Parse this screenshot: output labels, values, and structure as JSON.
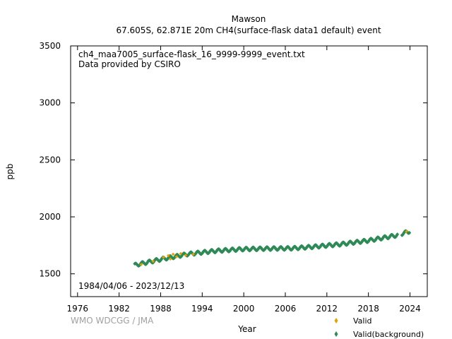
{
  "chart_data": {
    "type": "scatter",
    "title_line1": "Mawson",
    "title_line2": "67.605S, 62.871E 20m    CH4(surface-flask data1 default) event",
    "annotation_file": "ch4_maa7005_surface-flask_16_9999-9999_event.txt",
    "annotation_provider": "Data provided by CSIRO",
    "date_range": "1984/04/06 - 2023/12/13",
    "xlabel": "Year",
    "ylabel": "ppb",
    "xlim": [
      1975.0,
      2026.5
    ],
    "ylim": [
      1300,
      3500
    ],
    "xticks": [
      1976,
      1982,
      1988,
      1994,
      2000,
      2006,
      2012,
      2018,
      2024
    ],
    "yticks": [
      1500,
      2000,
      2500,
      3000,
      3500
    ],
    "grid": false,
    "legend_position": "bottom-right",
    "credit": "WMO WDCGG / JMA",
    "series": [
      {
        "name": "Valid",
        "color": "#e6a000",
        "marker": "diamond",
        "x": [
          1985.2,
          1986.9,
          1988.4,
          1989.1,
          1989.4,
          1989.8,
          1990.3,
          1990.9,
          1991.6,
          1992.7,
          2023.5
        ],
        "y": [
          1582,
          1610,
          1645,
          1660,
          1630,
          1672,
          1650,
          1678,
          1662,
          1672,
          1872
        ]
      },
      {
        "name": "Valid(background)",
        "color": "#2e8b57",
        "marker": "diamond",
        "x_start": 1984.26,
        "x_end": 2023.95,
        "trend_points": [
          [
            1984.3,
            1575
          ],
          [
            1988.0,
            1625
          ],
          [
            1992.0,
            1672
          ],
          [
            1996.0,
            1700
          ],
          [
            2000.0,
            1715
          ],
          [
            2004.0,
            1720
          ],
          [
            2007.0,
            1722
          ],
          [
            2010.0,
            1735
          ],
          [
            2014.0,
            1758
          ],
          [
            2018.0,
            1790
          ],
          [
            2022.0,
            1835
          ],
          [
            2024.0,
            1872
          ]
        ],
        "seasonal_amplitude": 14,
        "samples_per_year": 12
      }
    ]
  }
}
